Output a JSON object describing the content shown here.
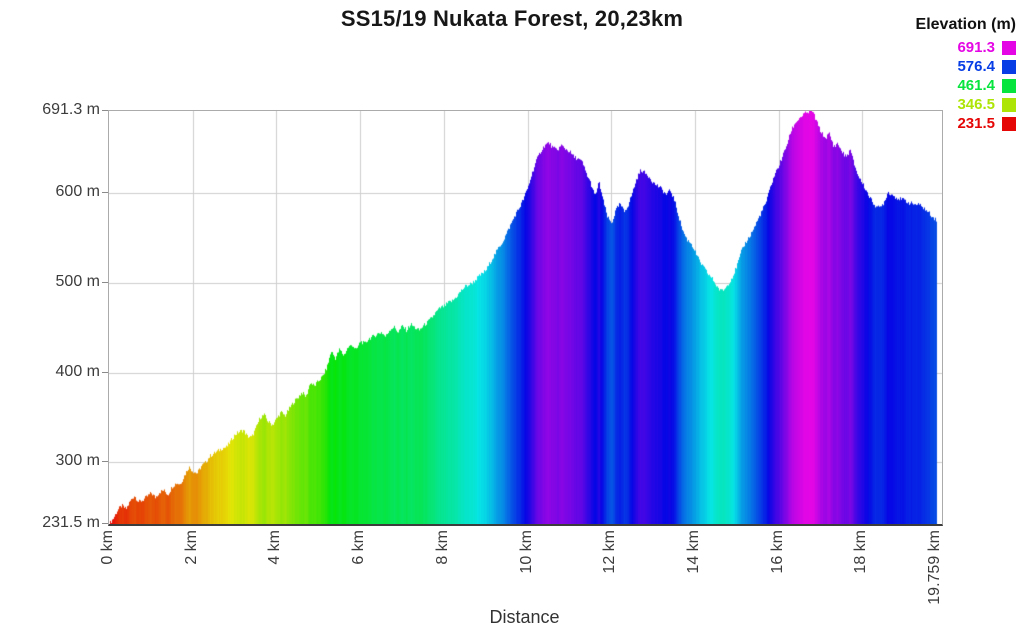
{
  "title": "SS15/19 Nukata Forest, 20,23km",
  "legend": {
    "title": "Elevation (m)",
    "entries": [
      {
        "label": "691.3",
        "color": "#e506e5"
      },
      {
        "label": "576.4",
        "color": "#063de5"
      },
      {
        "label": "461.4",
        "color": "#06e53d"
      },
      {
        "label": "346.5",
        "color": "#ade506"
      },
      {
        "label": "231.5",
        "color": "#e50606"
      }
    ]
  },
  "chart_data": {
    "type": "area",
    "title": "SS15/19 Nukata Forest, 20,23km",
    "xlabel": "Distance",
    "ylabel": "Elevation",
    "x_unit": "km",
    "y_unit": "m",
    "grid": true,
    "elev_min": 231.5,
    "elev_max": 691.3,
    "end_km": 19.759,
    "colormap": {
      "maps": "elevation",
      "hue_min_deg": 0,
      "hue_max_deg": 300,
      "saturation_pct": 95,
      "lightness_pct": 46
    },
    "yticks": [
      {
        "label": "691.3 m",
        "elev": 691.3
      },
      {
        "label": "600 m",
        "elev": 600
      },
      {
        "label": "500 m",
        "elev": 500
      },
      {
        "label": "400 m",
        "elev": 400
      },
      {
        "label": "300 m",
        "elev": 300
      },
      {
        "label": "231.5 m",
        "elev": 231.5
      }
    ],
    "xticks": [
      {
        "label": "0 km",
        "km": 0
      },
      {
        "label": "2 km",
        "km": 2
      },
      {
        "label": "4 km",
        "km": 4
      },
      {
        "label": "6 km",
        "km": 6
      },
      {
        "label": "8 km",
        "km": 8
      },
      {
        "label": "10 km",
        "km": 10
      },
      {
        "label": "12 km",
        "km": 12
      },
      {
        "label": "14 km",
        "km": 14
      },
      {
        "label": "16 km",
        "km": 16
      },
      {
        "label": "18 km",
        "km": 18
      },
      {
        "label": "19.759 km",
        "km": 19.759
      }
    ],
    "gridlines": {
      "horizontal_elev": [
        600,
        500,
        400,
        300
      ],
      "vertical_km": [
        2,
        4,
        6,
        8,
        10,
        12,
        14,
        16,
        18
      ]
    },
    "profile": {
      "step_km": 0.1,
      "elevations": [
        231.5,
        238,
        247,
        252,
        248,
        257,
        263,
        256,
        258,
        262,
        266,
        261,
        267,
        269,
        264,
        273,
        277,
        276,
        286,
        295,
        290,
        288,
        296,
        300,
        307,
        310,
        313,
        316,
        317,
        324,
        331,
        334,
        336,
        329,
        328,
        338,
        350,
        353,
        345,
        342,
        349,
        356,
        352,
        360,
        367,
        372,
        378,
        373,
        389,
        385,
        391,
        396,
        406,
        424,
        416,
        426,
        419,
        428,
        431,
        425,
        435,
        432,
        438,
        440,
        443,
        445,
        440,
        448,
        451,
        445,
        452,
        447,
        454,
        450,
        447,
        452,
        456,
        461,
        467,
        472,
        474,
        478,
        480,
        485,
        491,
        496,
        498,
        501,
        506,
        510,
        514,
        523,
        531,
        539,
        546,
        556,
        566,
        576,
        584,
        594,
        606,
        622,
        636,
        646,
        653,
        656,
        650,
        648,
        653,
        649,
        646,
        640,
        638,
        634,
        621,
        611,
        596,
        612,
        591,
        573,
        566,
        581,
        588,
        579,
        587,
        601,
        616,
        626,
        622,
        618,
        611,
        608,
        604,
        598,
        603,
        592,
        574,
        558,
        548,
        544,
        534,
        524,
        517,
        510,
        505,
        497,
        491,
        493,
        500,
        508,
        520,
        535,
        545,
        552,
        561,
        571,
        581,
        591,
        608,
        621,
        631,
        643,
        656,
        671,
        679,
        684,
        688,
        690,
        691.3,
        679,
        668,
        661,
        666,
        652,
        655,
        646,
        640,
        648,
        631,
        618,
        610,
        601,
        592,
        586,
        583,
        589,
        601,
        598,
        595,
        593,
        592,
        589,
        588,
        587,
        586,
        581,
        577,
        572
      ],
      "end_point": {
        "km": 19.759,
        "elev": 570
      }
    }
  }
}
